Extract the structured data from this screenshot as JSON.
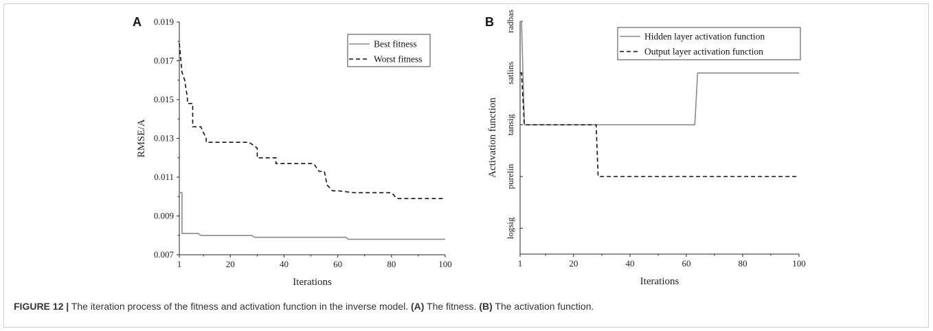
{
  "caption": {
    "figure_label": "FIGURE 12 |",
    "text_1": " The iteration process of the fitness and activation function in the inverse model. ",
    "label_a": "(A)",
    "text_2": " The fitness. ",
    "label_b": "(B)",
    "text_3": " The activation function."
  },
  "chart_data": [
    {
      "panel": "A",
      "type": "line",
      "xlabel": "Iterations",
      "ylabel": "RMSE/A",
      "xlim": [
        1,
        100
      ],
      "ylim": [
        0.007,
        0.019
      ],
      "x_ticks": [
        1,
        20,
        40,
        60,
        80,
        100
      ],
      "y_ticks": [
        "0.007",
        "0.009",
        "0.011",
        "0.013",
        "0.015",
        "0.017",
        "0.019"
      ],
      "legend_position": "top-right",
      "grid": false,
      "series": [
        {
          "name": "Best fitness",
          "style": "solid",
          "color": "#8a8a8a",
          "x": [
            1,
            2,
            2,
            8,
            9,
            11,
            28,
            29,
            63,
            64,
            100
          ],
          "y": [
            0.0102,
            0.0102,
            0.0081,
            0.0081,
            0.008,
            0.008,
            0.008,
            0.0079,
            0.0079,
            0.0078,
            0.0078
          ]
        },
        {
          "name": "Worst fitness",
          "style": "dashed",
          "color": "#111111",
          "x": [
            1,
            2,
            3,
            4,
            4,
            6,
            6,
            9,
            9,
            11,
            11,
            27,
            29,
            30,
            30,
            36,
            37,
            37,
            46,
            48,
            51,
            53,
            55,
            56,
            58,
            60,
            66,
            80,
            82,
            83,
            100
          ],
          "y": [
            0.0179,
            0.0164,
            0.016,
            0.0151,
            0.0148,
            0.0148,
            0.0136,
            0.0136,
            0.0136,
            0.013,
            0.0128,
            0.0128,
            0.0126,
            0.0125,
            0.012,
            0.012,
            0.012,
            0.0117,
            0.0117,
            0.0117,
            0.0117,
            0.0113,
            0.0113,
            0.0106,
            0.0103,
            0.0103,
            0.0102,
            0.0102,
            0.0099,
            0.0099,
            0.0099
          ]
        }
      ]
    },
    {
      "panel": "B",
      "type": "line",
      "xlabel": "Iterations",
      "ylabel": "Activation function",
      "xlim": [
        1,
        100
      ],
      "x_ticks": [
        1,
        20,
        40,
        60,
        80,
        100
      ],
      "y_categories": [
        "logsig",
        "purelin",
        "tansig",
        "satlins",
        "radbas"
      ],
      "legend_position": "top-right",
      "grid": false,
      "series": [
        {
          "name": "Hidden layer activation function",
          "style": "solid",
          "color": "#8a8a8a",
          "x": [
            1,
            1.5,
            2.5,
            63,
            64,
            100
          ],
          "y": [
            "radbas",
            "radbas",
            "tansig",
            "tansig",
            "satlins",
            "satlins"
          ]
        },
        {
          "name": "Output layer activation function",
          "style": "dashed",
          "color": "#111111",
          "x": [
            1,
            1.5,
            2.5,
            28,
            28.7,
            29.5,
            100
          ],
          "y": [
            "satlins",
            "satlins",
            "tansig",
            "tansig",
            "purelin",
            "purelin",
            "purelin"
          ]
        }
      ]
    }
  ]
}
